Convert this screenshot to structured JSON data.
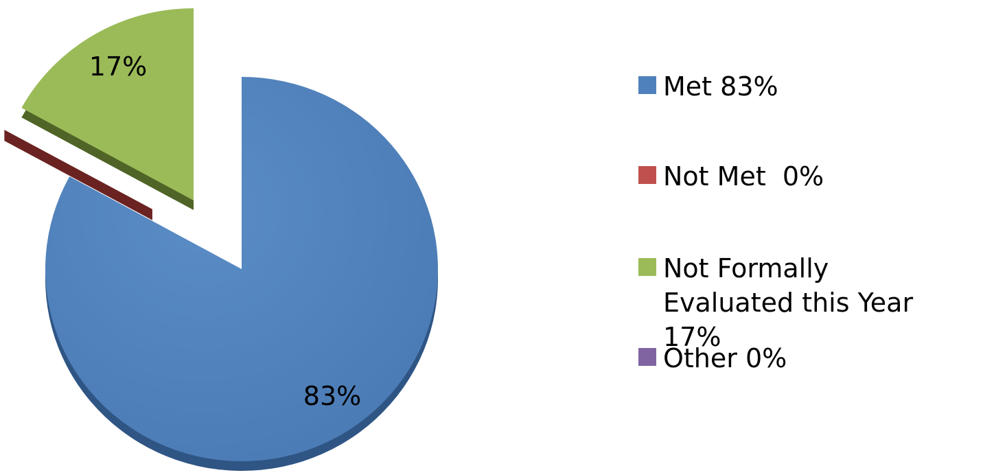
{
  "chart_data": {
    "type": "pie",
    "title": "",
    "legend_position": "right",
    "slices": [
      {
        "name": "Met 83%",
        "value": 83,
        "label": "83%",
        "color": "#4F81BD",
        "exploded": false
      },
      {
        "name": "Not Met  0%",
        "value": 0,
        "label": "",
        "color": "#C0504D",
        "exploded": true
      },
      {
        "name": "Not Formally Evaluated this Year 17%",
        "value": 17,
        "label": "17%",
        "color": "#9BBB59",
        "exploded": true
      },
      {
        "name": "Other 0%",
        "value": 0,
        "label": "",
        "color": "#8064A2",
        "exploded": false
      }
    ]
  }
}
